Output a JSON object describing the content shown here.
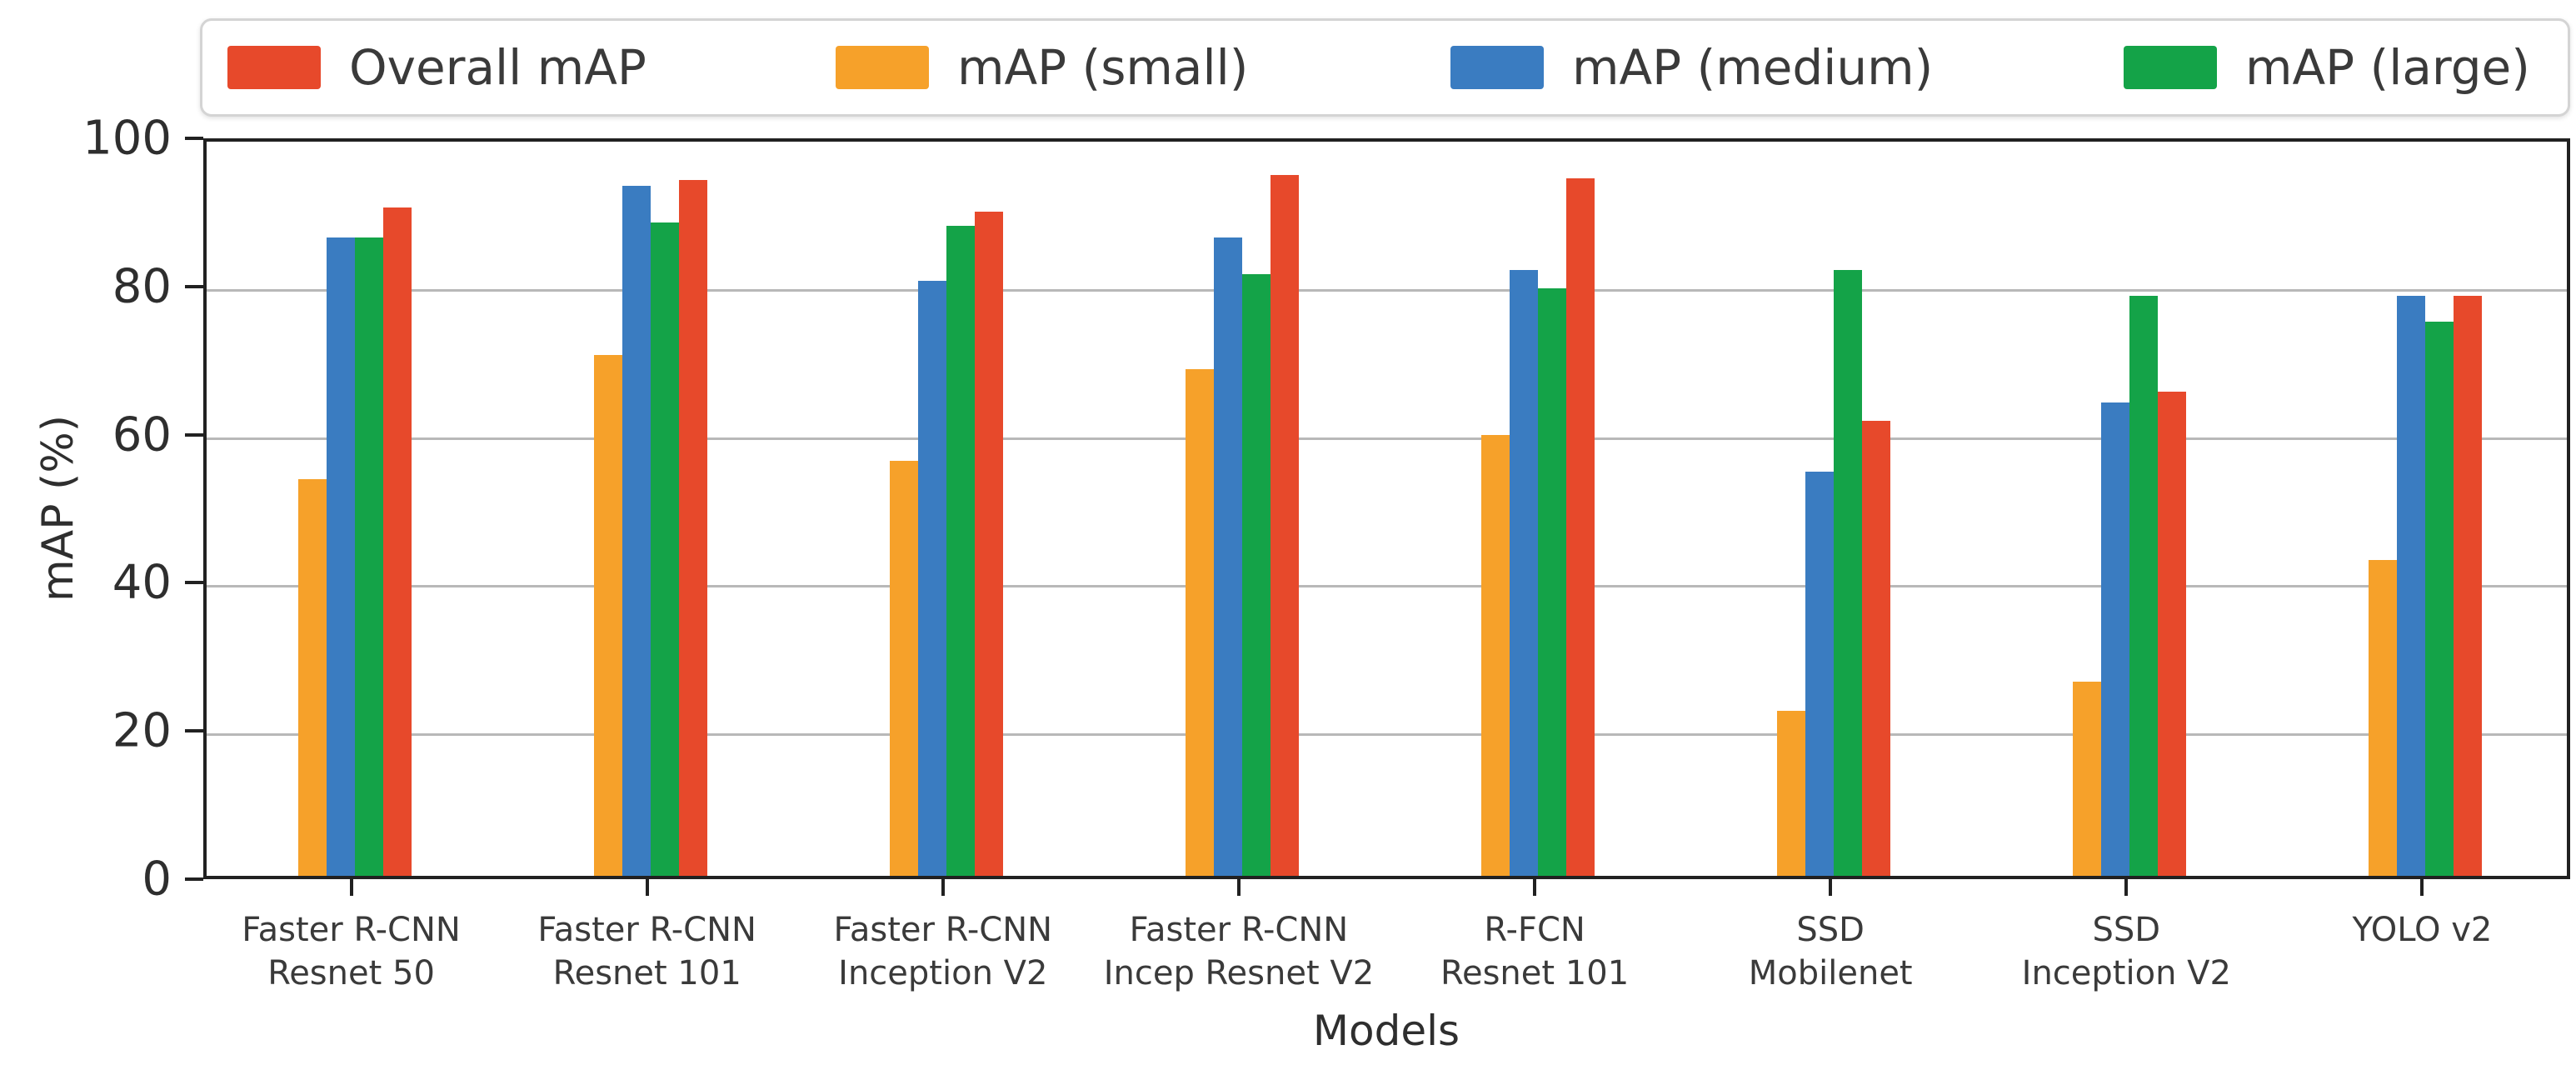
{
  "chart_data": {
    "type": "bar",
    "title": "",
    "xlabel": "Models",
    "ylabel": "mAP (%)",
    "ylim": [
      0,
      100
    ],
    "yticks": [
      0,
      20,
      40,
      60,
      80,
      100
    ],
    "grid": "horizontal",
    "legend_position": "top",
    "legend_order": [
      "Overall mAP",
      "mAP (small)",
      "mAP (medium)",
      "mAP (large)"
    ],
    "categories": [
      "Faster R-CNN\nResnet 50",
      "Faster R-CNN\nResnet 101",
      "Faster R-CNN\nInception V2",
      "Faster R-CNN\nIncep Resnet V2",
      "R-FCN\nResnet 101",
      "SSD\nMobilenet",
      "SSD\nInception V2",
      "YOLO v2"
    ],
    "series": [
      {
        "name": "mAP (small)",
        "color": "#f6a12a",
        "values": [
          54,
          71,
          56.5,
          69,
          60,
          22.5,
          26.5,
          43
        ]
      },
      {
        "name": "mAP (medium)",
        "color": "#3a7cc1",
        "values": [
          87,
          94,
          81,
          87,
          82.5,
          55,
          64.5,
          79
        ]
      },
      {
        "name": "mAP (large)",
        "color": "#14a348",
        "values": [
          87,
          89,
          88.5,
          82,
          80,
          82.5,
          79,
          75.5
        ]
      },
      {
        "name": "Overall mAP",
        "color": "#e7492b",
        "values": [
          91,
          94.8,
          90.5,
          95.5,
          95,
          62,
          66,
          79
        ]
      }
    ],
    "colors": {
      "grid": "#b8b8b8",
      "spine": "#212121",
      "text": "#2e2e2e"
    }
  }
}
